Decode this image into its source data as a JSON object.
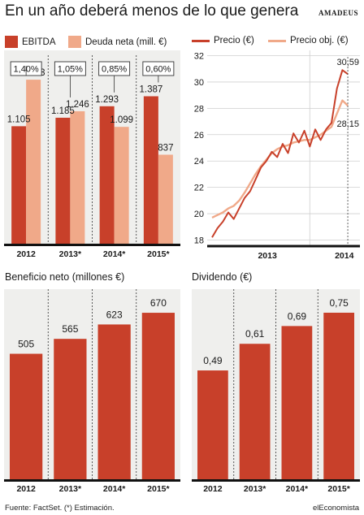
{
  "header": {
    "title": "En un año deberá menos de lo que genera",
    "brand": "amadeus"
  },
  "footer": {
    "source": "Fuente: FactSet. (*) Estimación.",
    "publisher": "elEconomista"
  },
  "colors": {
    "primary_red": "#c8402a",
    "light_salmon": "#f0a989",
    "panel_bg": "#efefed"
  },
  "chart_data": [
    {
      "id": "ebitda_deuda",
      "type": "bar",
      "categories": [
        "2012",
        "2013*",
        "2014*",
        "2015*"
      ],
      "series": [
        {
          "name": "EBITDA",
          "values": [
            1105,
            1185,
            1293,
            1387
          ],
          "labels": [
            "1.105",
            "1.185",
            "1.293",
            "1.387"
          ]
        },
        {
          "name": "Deuda neta (mill. €)",
          "values": [
            1543,
            1246,
            1099,
            837
          ],
          "labels": [
            "1.543",
            "1.246",
            "1.099",
            "837"
          ]
        }
      ],
      "ratio_labels": [
        "1,40%",
        "1,05%",
        "0,85%",
        "0,60%"
      ],
      "ylim": [
        0,
        1750
      ]
    },
    {
      "id": "precio",
      "type": "line",
      "series": [
        {
          "name": "Precio (€)",
          "end_label": "30,59"
        },
        {
          "name": "Precio obj. (€)",
          "end_label": "28,15"
        }
      ],
      "x_ticks": [
        "2013",
        "2014"
      ],
      "y_ticks": [
        18,
        20,
        22,
        24,
        26,
        28,
        30,
        32
      ],
      "ylim": [
        17.6,
        32.4
      ],
      "grid": true,
      "price_points": [
        [
          "2012-01",
          18.2
        ],
        [
          "2012-02",
          18.9
        ],
        [
          "2012-03",
          19.4
        ],
        [
          "2012-04",
          20.1
        ],
        [
          "2012-05",
          19.6
        ],
        [
          "2012-06",
          20.4
        ],
        [
          "2012-07",
          21.2
        ],
        [
          "2012-08",
          21.7
        ],
        [
          "2012-09",
          22.6
        ],
        [
          "2012-10",
          23.5
        ],
        [
          "2012-11",
          24.0
        ],
        [
          "2012-12",
          24.7
        ],
        [
          "2013-01",
          24.3
        ],
        [
          "2013-02",
          25.3
        ],
        [
          "2013-03",
          24.6
        ],
        [
          "2013-04",
          26.1
        ],
        [
          "2013-05",
          25.4
        ],
        [
          "2013-06",
          26.3
        ],
        [
          "2013-07",
          25.1
        ],
        [
          "2013-08",
          26.4
        ],
        [
          "2013-09",
          25.6
        ],
        [
          "2013-10",
          26.4
        ],
        [
          "2013-11",
          26.9
        ],
        [
          "2013-12",
          29.5
        ],
        [
          "2014-01",
          30.9
        ],
        [
          "2014-02",
          30.6
        ]
      ],
      "target_points": [
        [
          "2012-01",
          19.7
        ],
        [
          "2012-02",
          19.9
        ],
        [
          "2012-03",
          20.1
        ],
        [
          "2012-04",
          20.4
        ],
        [
          "2012-05",
          20.6
        ],
        [
          "2012-06",
          21.0
        ],
        [
          "2012-07",
          21.6
        ],
        [
          "2012-08",
          22.3
        ],
        [
          "2012-09",
          23.0
        ],
        [
          "2012-10",
          23.6
        ],
        [
          "2012-11",
          24.1
        ],
        [
          "2012-12",
          24.6
        ],
        [
          "2013-01",
          24.9
        ],
        [
          "2013-02",
          25.1
        ],
        [
          "2013-03",
          25.2
        ],
        [
          "2013-04",
          25.4
        ],
        [
          "2013-05",
          25.5
        ],
        [
          "2013-06",
          25.6
        ],
        [
          "2013-07",
          25.6
        ],
        [
          "2013-08",
          25.8
        ],
        [
          "2013-09",
          26.0
        ],
        [
          "2013-10",
          26.3
        ],
        [
          "2013-11",
          26.6
        ],
        [
          "2013-12",
          27.6
        ],
        [
          "2014-01",
          28.6
        ],
        [
          "2014-02",
          28.2
        ]
      ]
    },
    {
      "id": "beneficio",
      "type": "bar",
      "title": "Beneficio neto (millones €)",
      "categories": [
        "2012",
        "2013*",
        "2014*",
        "2015*"
      ],
      "values": [
        505,
        565,
        623,
        670
      ],
      "labels": [
        "505",
        "565",
        "623",
        "670"
      ],
      "ylim": [
        0,
        765
      ]
    },
    {
      "id": "dividendo",
      "type": "bar",
      "title": "Dividendo (€)",
      "categories": [
        "2012",
        "2013*",
        "2014*",
        "2015*"
      ],
      "values": [
        0.49,
        0.61,
        0.69,
        0.75
      ],
      "labels": [
        "0,49",
        "0,61",
        "0,69",
        "0,75"
      ],
      "ylim": [
        0,
        0.856
      ]
    }
  ]
}
